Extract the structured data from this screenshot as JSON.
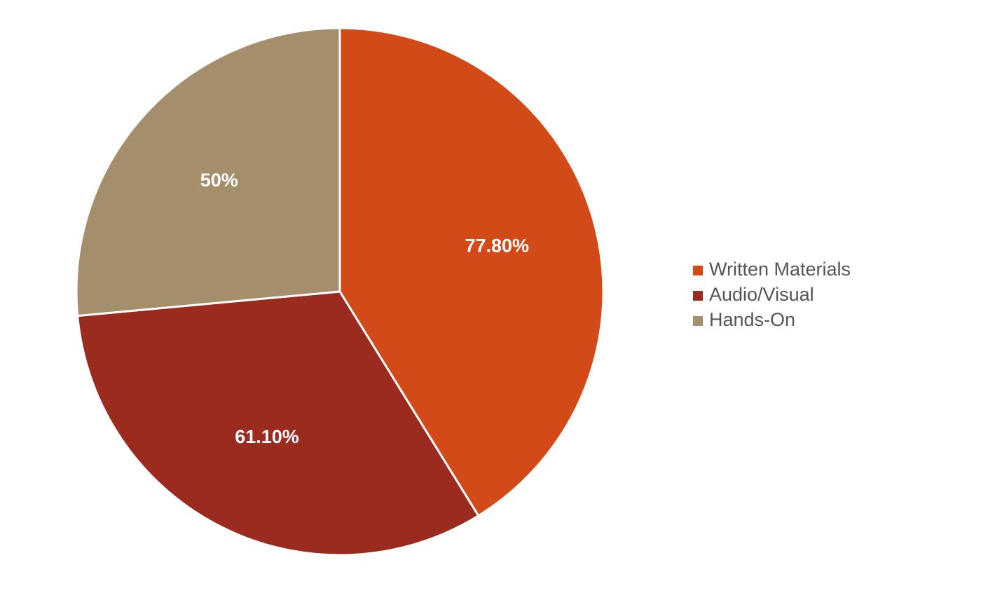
{
  "chart_data": {
    "type": "pie",
    "categories": [
      "Written Materials",
      "Audio/Visual",
      "Hands-On"
    ],
    "values": [
      77.8,
      61.1,
      50
    ],
    "value_labels": [
      "77.80%",
      "61.10%",
      "50%"
    ],
    "colors": [
      "#d14a17",
      "#9a2b1e",
      "#a48e6b"
    ],
    "legend": "right"
  }
}
